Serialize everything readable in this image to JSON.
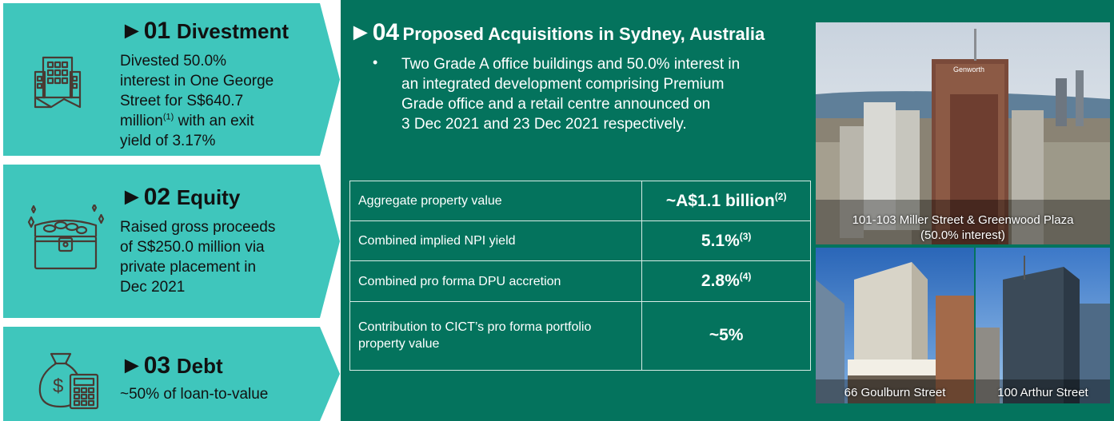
{
  "sections": {
    "divestment": {
      "number": "►01",
      "title": "Divestment",
      "lines": [
        "Divested 50.0%",
        "interest in One George",
        "Street for S$640.7"
      ],
      "line4_main": "million",
      "line4_sup": "(1)",
      "line4_rest": " with an exit",
      "line5": "yield of 3.17%",
      "icon": "building-icon"
    },
    "equity": {
      "number": "►02",
      "title": "Equity",
      "lines": [
        "Raised gross proceeds",
        "of S$250.0 million via",
        "private placement in",
        "Dec 2021"
      ],
      "icon": "treasure-chest-icon"
    },
    "debt": {
      "number": "►03",
      "title": "Debt",
      "lines": [
        "~50% of loan-to-value"
      ],
      "icon": "money-bag-calculator-icon"
    }
  },
  "acquisitions": {
    "number": "►04",
    "title": "Proposed Acquisitions in Sydney, Australia",
    "bullet": "•",
    "bullet_lines": [
      "Two Grade A office buildings and 50.0% interest in",
      "an integrated development comprising Premium",
      "Grade office and a retail centre announced on",
      "3 Dec 2021 and 23 Dec 2021 respectively."
    ],
    "metrics": [
      {
        "label": "Aggregate property value",
        "value": "~A$1.1 billion",
        "sup": "(2)"
      },
      {
        "label": "Combined implied NPI yield",
        "value": "5.1%",
        "sup": "(3)"
      },
      {
        "label": "Combined pro forma DPU accretion",
        "value": "2.8%",
        "sup": "(4)"
      },
      {
        "label": "Contribution to CICT’s pro forma portfolio property value",
        "value": "~5%",
        "sup": ""
      }
    ]
  },
  "photos": {
    "top": {
      "caption_line1": "101-103 Miller Street & Greenwood Plaza",
      "caption_line2": "(50.0% interest)",
      "sign": "Genworth"
    },
    "bottom_left": {
      "caption": "66 Goulburn Street"
    },
    "bottom_right": {
      "caption": "100 Arthur Street"
    }
  },
  "colors": {
    "teal": "#3fc6bc",
    "dark_green": "#04735d",
    "icon_stroke": "#4a3a33"
  }
}
